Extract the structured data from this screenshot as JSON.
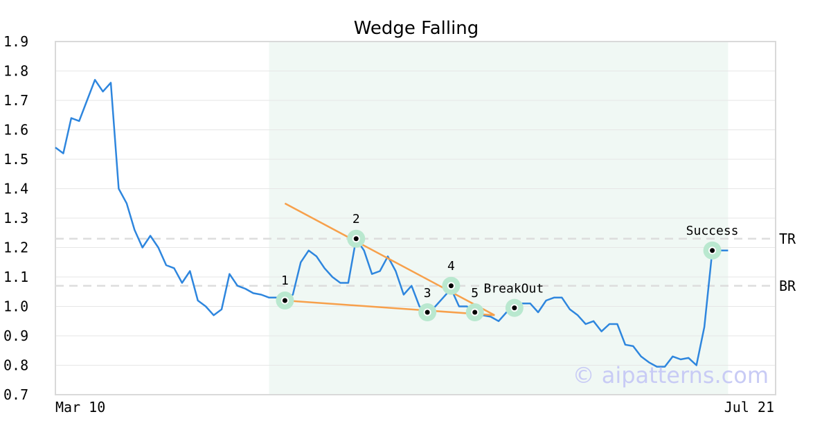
{
  "chart_data": {
    "type": "line",
    "title": "Wedge Falling",
    "xlabel": "",
    "ylabel": "",
    "ylim": [
      0.7,
      1.9
    ],
    "yticks": [
      "0.7",
      "0.8",
      "0.9",
      "1.0",
      "1.1",
      "1.2",
      "1.3",
      "1.4",
      "1.5",
      "1.6",
      "1.7",
      "1.8",
      "1.9"
    ],
    "x_tick_labels": [
      "Mar 10",
      "Jul 21"
    ],
    "x_range": [
      0,
      91
    ],
    "grid": true,
    "highlight_range": [
      27,
      85
    ],
    "series": [
      {
        "color": "#2e86de",
        "values": [
          1.54,
          1.52,
          1.64,
          1.63,
          1.7,
          1.77,
          1.73,
          1.76,
          1.4,
          1.35,
          1.26,
          1.2,
          1.24,
          1.2,
          1.14,
          1.13,
          1.08,
          1.12,
          1.02,
          1.0,
          0.97,
          0.99,
          1.11,
          1.07,
          1.06,
          1.045,
          1.04,
          1.03,
          1.03,
          1.02,
          1.04,
          1.15,
          1.19,
          1.17,
          1.13,
          1.1,
          1.08,
          1.08,
          1.23,
          1.19,
          1.11,
          1.12,
          1.17,
          1.12,
          1.04,
          1.07,
          1.0,
          0.98,
          1.0,
          1.03,
          1.06,
          1.0,
          1.0,
          0.98,
          0.97,
          0.965,
          0.95,
          0.98,
          1.0,
          1.01,
          1.01,
          0.98,
          1.02,
          1.03,
          1.03,
          0.99,
          0.97,
          0.94,
          0.95,
          0.915,
          0.94,
          0.94,
          0.87,
          0.865,
          0.83,
          0.81,
          0.795,
          0.795,
          0.83,
          0.82,
          0.825,
          0.8,
          0.93,
          1.19,
          1.19,
          1.19
        ]
      }
    ],
    "reference_lines": [
      {
        "label": "TR",
        "y": 1.23
      },
      {
        "label": "BR",
        "y": 1.07
      }
    ],
    "trend_lines": [
      {
        "color": "#f7a04b",
        "from": [
          29,
          1.35
        ],
        "to": [
          55.5,
          0.97
        ]
      },
      {
        "color": "#f7a04b",
        "from": [
          29,
          1.02
        ],
        "to": [
          55.5,
          0.97
        ]
      }
    ],
    "annotations": [
      {
        "label": "1",
        "x": 29,
        "y": 1.02
      },
      {
        "label": "2",
        "x": 38,
        "y": 1.23
      },
      {
        "label": "3",
        "x": 47,
        "y": 0.98
      },
      {
        "label": "4",
        "x": 50,
        "y": 1.07
      },
      {
        "label": "5",
        "x": 53,
        "y": 0.98
      },
      {
        "label": "BreakOut",
        "x": 58,
        "y": 0.995
      },
      {
        "label": "Success",
        "x": 83,
        "y": 1.19
      }
    ],
    "watermark": "© aipatterns.com",
    "colors": {
      "line": "#2e86de",
      "trend": "#f7a04b",
      "highlight": "#f0f8f4",
      "marker_ring": "#b9e8cf",
      "reference": "#dddddd",
      "grid": "#e6e6e6",
      "frame": "#d9d9d9"
    }
  }
}
